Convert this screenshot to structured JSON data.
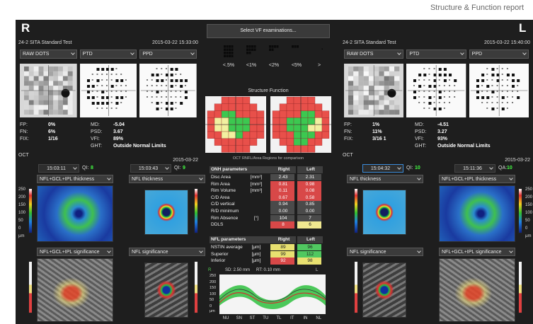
{
  "header": {
    "title": "Structure & Function report"
  },
  "right_eye": {
    "label": "R",
    "test": "24-2 SITA Standard Test",
    "datetime": "2015-03-22 15:33:00",
    "vf_dropdowns": [
      "RAW DOTS",
      "PTD",
      "PPD"
    ],
    "stats_left": [
      [
        "FP:",
        "0%"
      ],
      [
        "FN:",
        "6%"
      ],
      [
        "FIX:",
        "1/16"
      ]
    ],
    "stats_right": [
      [
        "MD:",
        "-5.04"
      ],
      [
        "PSD:",
        "3.67"
      ],
      [
        "VFI:",
        "89%"
      ],
      [
        "GHT:",
        "Outside Normal Limits"
      ]
    ],
    "oct": "OCT",
    "oct_date": "2015-03-22",
    "scans": [
      {
        "time": "15:03:11",
        "quality_label": "QI:",
        "quality": "8"
      },
      {
        "time": "15:03:43",
        "quality_label": "QI:",
        "quality": "9"
      }
    ],
    "map_dropdowns": [
      "NFL+GCL+IPL thickness",
      "NFL thickness",
      "NFL+GCL+IPL significance",
      "NFL significance"
    ],
    "colorbar": [
      "250",
      "200",
      "150",
      "100",
      "50",
      "0",
      "µm"
    ]
  },
  "left_eye": {
    "label": "L",
    "test": "24-2 SITA Standard Test",
    "datetime": "2015-03-22 15:40:00",
    "vf_dropdowns": [
      "RAW DOTS",
      "PTD",
      "PPD"
    ],
    "stats_left": [
      [
        "FP:",
        "1%"
      ],
      [
        "FN:",
        "11%"
      ],
      [
        "FIX:",
        "3/16 1"
      ]
    ],
    "stats_right": [
      [
        "MD:",
        "-4.51"
      ],
      [
        "PSD:",
        "3.27"
      ],
      [
        "VFI:",
        "93%"
      ],
      [
        "GHT:",
        "Outside Normal Limits"
      ]
    ],
    "oct": "OCT",
    "oct_date": "2015-03-22",
    "scans": [
      {
        "time": "15:04:32",
        "quality_label": "QI:",
        "quality": "10"
      },
      {
        "time": "15:11:36",
        "quality_label": "QA:",
        "quality": "10"
      }
    ],
    "map_dropdowns": [
      "NFL thickness",
      "NFL+GCL+IPL thickness",
      "NFL significance",
      "NFL+GCL+IPL significance"
    ],
    "colorbar": [
      "250",
      "200",
      "150",
      "100",
      "50",
      "0",
      "µm"
    ]
  },
  "center": {
    "select_button": "Select VF examinations...",
    "probability_legend": [
      "<.5%",
      "<1%",
      "<2%",
      "<5%",
      ">"
    ],
    "sf_title": "Structure Function",
    "sf_note": "OCT RNFL/Area Regions for comparison",
    "onh": {
      "header": [
        "ONH parameters",
        "Right",
        "Left"
      ],
      "rows": [
        {
          "name": "Disc Area",
          "unit": "[mm²]",
          "right": "2.43",
          "left": "2.31"
        },
        {
          "name": "Rim Area",
          "unit": "[mm²]",
          "right": "0.81",
          "left": "0.98"
        },
        {
          "name": "Rim Volume",
          "unit": "[mm³]",
          "right": "0.11",
          "left": "0.08"
        },
        {
          "name": "C/D Area",
          "right": "0.67",
          "left": "0.58"
        },
        {
          "name": "C/D vertical",
          "right": "0.94",
          "left": "0.85"
        },
        {
          "name": "R/D minimum",
          "right": "0.00",
          "left": "0.00"
        },
        {
          "name": "Rim Absence",
          "unit": "[°]",
          "right": "104",
          "left": "7"
        },
        {
          "name": "DDLS",
          "right": "8",
          "left": "6"
        }
      ]
    },
    "nfl": {
      "header": [
        "NFL parameters",
        "Right",
        "Left"
      ],
      "rows": [
        {
          "name": "NSTIN average",
          "unit": "[µm]",
          "right": "89",
          "left": "96"
        },
        {
          "name": "Superior",
          "unit": "[µm]",
          "right": "99",
          "left": "112"
        },
        {
          "name": "Inferior",
          "unit": "[µm]",
          "right": "92",
          "left": "98"
        }
      ]
    },
    "profile": {
      "legend": [
        "R",
        "SD: 2.50 mm",
        "RT: 0.10 mm",
        "L"
      ],
      "yticks": [
        "250",
        "200",
        "150",
        "100",
        "50",
        "0"
      ],
      "unit": "µm",
      "categories": [
        "NU",
        "SN",
        "ST",
        "TU",
        "TL",
        "IT",
        "IN",
        "NL"
      ]
    }
  }
}
